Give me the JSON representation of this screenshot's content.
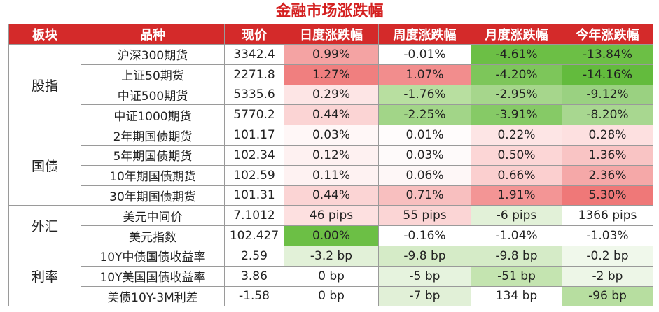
{
  "title": "金融市场涨跌幅",
  "header": [
    "板块",
    "品种",
    "现价",
    "日度涨跌幅",
    "周度涨跌幅",
    "月度涨跌幅",
    "今年涨跌幅"
  ],
  "groups": [
    {
      "name": "股指",
      "rows": [
        [
          "沪深300期货",
          "3342.4",
          "0.99%",
          "-0.01%",
          "-4.61%",
          "-13.84%"
        ],
        [
          "上证50期货",
          "2271.8",
          "1.27%",
          "1.07%",
          "-4.20%",
          "-14.16%"
        ],
        [
          "中证500期货",
          "5335.6",
          "0.29%",
          "-1.76%",
          "-2.95%",
          "-9.12%"
        ],
        [
          "中证1000期货",
          "5770.2",
          "0.44%",
          "-2.25%",
          "-3.91%",
          "-8.20%"
        ]
      ]
    },
    {
      "name": "国债",
      "rows": [
        [
          "2年期国债期货",
          "101.17",
          "0.03%",
          "0.01%",
          "0.22%",
          "0.28%"
        ],
        [
          "5年期国债期货",
          "102.34",
          "0.12%",
          "0.03%",
          "0.50%",
          "1.36%"
        ],
        [
          "10年期国债期货",
          "102.59",
          "0.11%",
          "0.06%",
          "0.66%",
          "2.36%"
        ],
        [
          "30年期国债期货",
          "101.31",
          "0.44%",
          "0.71%",
          "1.91%",
          "5.30%"
        ]
      ]
    },
    {
      "name": "外汇",
      "rows": [
        [
          "美元中间价",
          "7.1012",
          "46 pips",
          "55 pips",
          "-6 pips",
          "1366 pips"
        ],
        [
          "美元指数",
          "102.427",
          "0.00%",
          "-0.16%",
          "-1.04%",
          "-1.03%"
        ]
      ]
    },
    {
      "name": "利率",
      "rows": [
        [
          "10Y中债国债收益率",
          "2.59",
          "-3.2 bp",
          "-9.8 bp",
          "-9.8 bp",
          "-0.2 bp"
        ],
        [
          "10Y美国国债收益率",
          "3.86",
          "0 bp",
          "-5 bp",
          "-51 bp",
          "-2 bp"
        ],
        [
          "美债10Y-3M利差",
          "-1.58",
          "0 bp",
          "-7 bp",
          "134 bp",
          "-96 bp"
        ]
      ]
    }
  ]
}
